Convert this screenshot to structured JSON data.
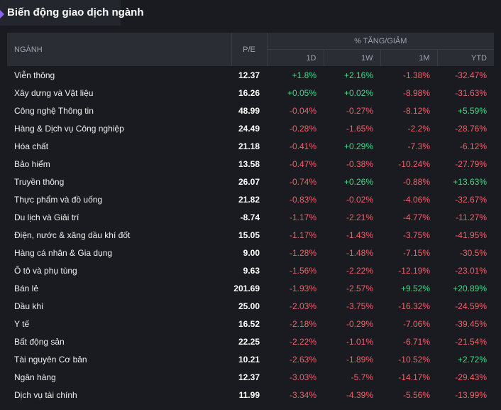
{
  "panel": {
    "title": "Biến động giao dịch ngành"
  },
  "colors": {
    "up": "#3ddc84",
    "down": "#f0606a",
    "accent": "#8a64f0"
  },
  "header": {
    "name": "NGÀNH",
    "pe": "P/E",
    "group": "% TĂNG/GIẢM",
    "d1": "1D",
    "w1": "1W",
    "m1": "1M",
    "ytd": "YTD"
  },
  "rows": [
    {
      "name": "Viễn thông",
      "pe": "12.37",
      "d1": "+1.8%",
      "w1": "+2.16%",
      "m1": "-1.38%",
      "ytd": "-32.47%"
    },
    {
      "name": "Xây dựng và Vật liệu",
      "pe": "16.26",
      "d1": "+0.05%",
      "w1": "+0.02%",
      "m1": "-8.98%",
      "ytd": "-31.63%"
    },
    {
      "name": "Công nghệ Thông tin",
      "pe": "48.99",
      "d1": "-0.04%",
      "w1": "-0.27%",
      "m1": "-8.12%",
      "ytd": "+5.59%"
    },
    {
      "name": "Hàng & Dịch vụ Công nghiệp",
      "pe": "24.49",
      "d1": "-0.28%",
      "w1": "-1.65%",
      "m1": "-2.2%",
      "ytd": "-28.76%"
    },
    {
      "name": "Hóa chất",
      "pe": "21.18",
      "d1": "-0.41%",
      "w1": "+0.29%",
      "m1": "-7.3%",
      "ytd": "-6.12%"
    },
    {
      "name": "Bảo hiểm",
      "pe": "13.58",
      "d1": "-0.47%",
      "w1": "-0.38%",
      "m1": "-10.24%",
      "ytd": "-27.79%"
    },
    {
      "name": "Truyền thông",
      "pe": "26.07",
      "d1": "-0.74%",
      "w1": "+0.26%",
      "m1": "-0.88%",
      "ytd": "+13.63%"
    },
    {
      "name": "Thực phẩm và đồ uống",
      "pe": "21.82",
      "d1": "-0.83%",
      "w1": "-0.02%",
      "m1": "-4.06%",
      "ytd": "-32.67%"
    },
    {
      "name": "Du lịch và Giải trí",
      "pe": "-8.74",
      "d1": "-1.17%",
      "w1": "-2.21%",
      "m1": "-4.77%",
      "ytd": "-11.27%"
    },
    {
      "name": "Điện, nước & xăng dầu khí đốt",
      "pe": "15.05",
      "d1": "-1.17%",
      "w1": "-1.43%",
      "m1": "-3.75%",
      "ytd": "-41.95%"
    },
    {
      "name": "Hàng cá nhân & Gia dụng",
      "pe": "9.00",
      "d1": "-1.28%",
      "w1": "-1.48%",
      "m1": "-7.15%",
      "ytd": "-30.5%"
    },
    {
      "name": "Ô tô và phụ tùng",
      "pe": "9.63",
      "d1": "-1.56%",
      "w1": "-2.22%",
      "m1": "-12.19%",
      "ytd": "-23.01%"
    },
    {
      "name": "Bán lẻ",
      "pe": "201.69",
      "d1": "-1.93%",
      "w1": "-2.57%",
      "m1": "+9.52%",
      "ytd": "+20.89%"
    },
    {
      "name": "Dầu khí",
      "pe": "25.00",
      "d1": "-2.03%",
      "w1": "-3.75%",
      "m1": "-16.32%",
      "ytd": "-24.59%"
    },
    {
      "name": "Y tế",
      "pe": "16.52",
      "d1": "-2.18%",
      "w1": "-0.29%",
      "m1": "-7.06%",
      "ytd": "-39.45%"
    },
    {
      "name": "Bất động sản",
      "pe": "22.25",
      "d1": "-2.22%",
      "w1": "-1.01%",
      "m1": "-6.71%",
      "ytd": "-21.54%"
    },
    {
      "name": "Tài nguyên Cơ bản",
      "pe": "10.21",
      "d1": "-2.63%",
      "w1": "-1.89%",
      "m1": "-10.52%",
      "ytd": "+2.72%"
    },
    {
      "name": "Ngân hàng",
      "pe": "12.37",
      "d1": "-3.03%",
      "w1": "-5.7%",
      "m1": "-14.17%",
      "ytd": "-29.43%"
    },
    {
      "name": "Dịch vụ tài chính",
      "pe": "11.99",
      "d1": "-3.34%",
      "w1": "-4.39%",
      "m1": "-5.56%",
      "ytd": "-13.99%"
    }
  ]
}
